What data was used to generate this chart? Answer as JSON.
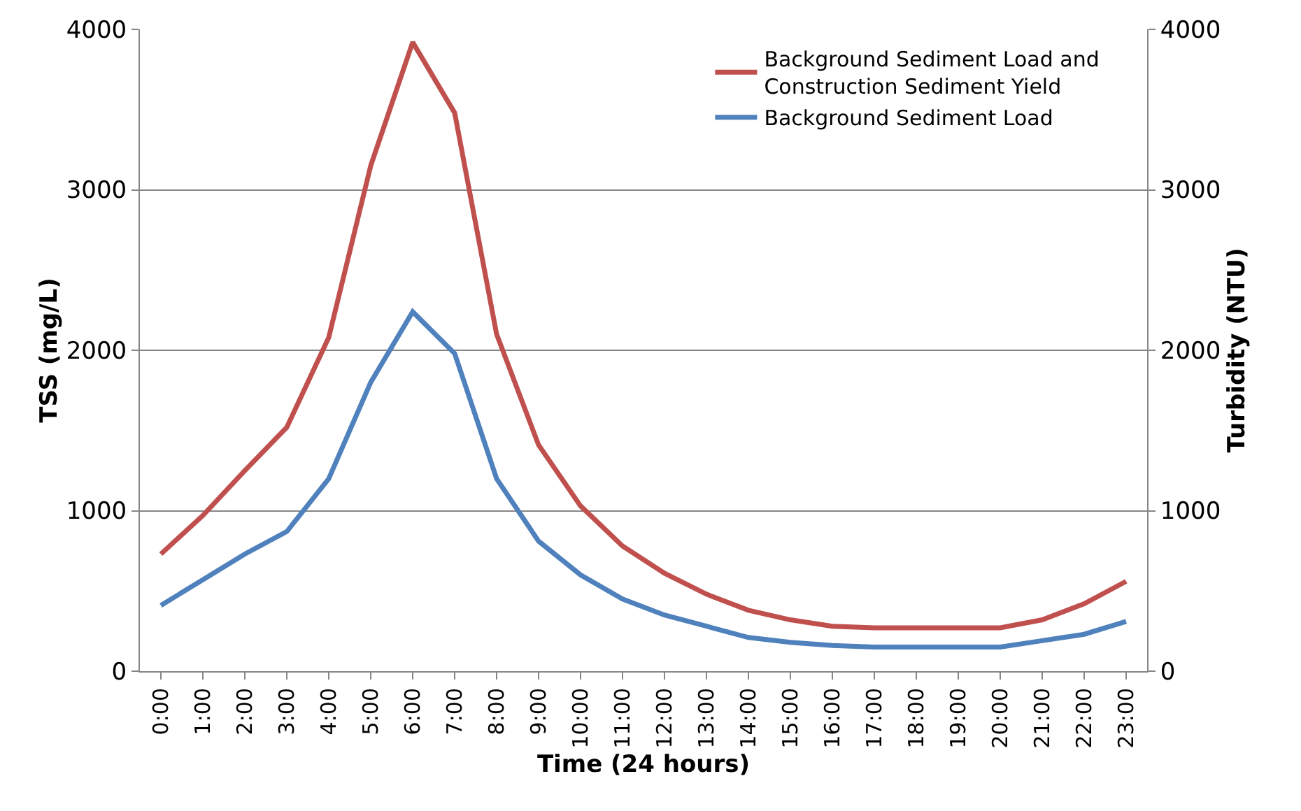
{
  "chart_data": {
    "type": "line",
    "xlabel": "Time (24 hours)",
    "ylabel": "TSS (mg/L)",
    "y2label": "Turbidity (NTU)",
    "categories": [
      "0:00",
      "1:00",
      "2:00",
      "3:00",
      "4:00",
      "5:00",
      "6:00",
      "7:00",
      "8:00",
      "9:00",
      "10:00",
      "11:00",
      "12:00",
      "13:00",
      "14:00",
      "15:00",
      "16:00",
      "17:00",
      "18:00",
      "19:00",
      "20:00",
      "21:00",
      "22:00",
      "23:00"
    ],
    "series": [
      {
        "name": "Background Sediment Load and Construction Sediment Yield",
        "color": "#c0504d",
        "values": [
          730,
          970,
          1250,
          1520,
          2080,
          3150,
          3920,
          3480,
          2100,
          1410,
          1030,
          780,
          610,
          480,
          380,
          320,
          280,
          270,
          270,
          270,
          270,
          320,
          420,
          560
        ]
      },
      {
        "name": "Background Sediment Load",
        "color": "#4f81bd",
        "values": [
          410,
          570,
          730,
          870,
          1200,
          1800,
          2240,
          1980,
          1200,
          810,
          600,
          450,
          350,
          280,
          210,
          180,
          160,
          150,
          150,
          150,
          150,
          190,
          230,
          310
        ]
      }
    ],
    "ylim": [
      0,
      4000
    ],
    "yticks": [
      0,
      1000,
      2000,
      3000,
      4000
    ],
    "y2lim": [
      0,
      4000
    ],
    "y2ticks": [
      0,
      1000,
      2000,
      3000,
      4000
    ],
    "grid": "y",
    "legend": "top right",
    "marker": "none",
    "line_style": "solid"
  }
}
